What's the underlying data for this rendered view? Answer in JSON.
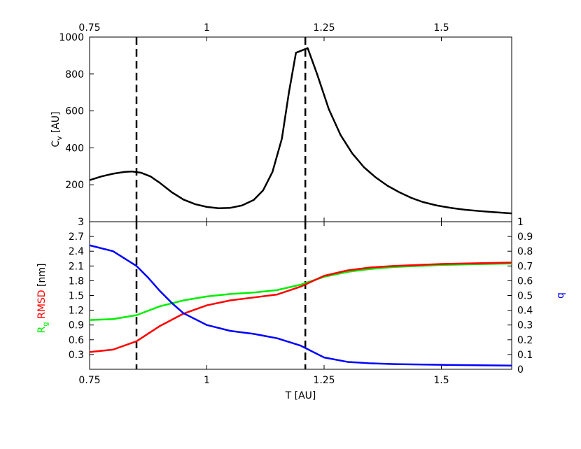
{
  "chart_data": [
    {
      "type": "line",
      "panel": "top",
      "ylabel_base": "C",
      "ylabel_sub": "v",
      "ylabel_rest": " [AU]",
      "xlim": [
        0.75,
        1.65
      ],
      "ylim": [
        0,
        1000
      ],
      "x_ticks": [
        "0.75",
        "1",
        "1.25",
        "1.5"
      ],
      "x_tick_values": [
        0.75,
        1.0,
        1.25,
        1.5
      ],
      "y_ticks": [
        "200",
        "400",
        "600",
        "800",
        "1000"
      ],
      "y_tick_values": [
        200,
        400,
        600,
        800,
        1000
      ],
      "vlines": [
        0.85,
        1.21
      ],
      "grid": false,
      "series": [
        {
          "color": "#000000",
          "x": [
            0.75,
            0.775,
            0.8,
            0.825,
            0.84,
            0.86,
            0.88,
            0.9,
            0.925,
            0.95,
            0.975,
            1.0,
            1.025,
            1.05,
            1.075,
            1.1,
            1.12,
            1.14,
            1.16,
            1.175,
            1.19,
            1.2,
            1.215,
            1.235,
            1.26,
            1.285,
            1.31,
            1.335,
            1.36,
            1.385,
            1.41,
            1.435,
            1.46,
            1.49,
            1.52,
            1.55,
            1.58,
            1.61,
            1.65
          ],
          "y": [
            225,
            245,
            260,
            270,
            272,
            265,
            245,
            210,
            160,
            120,
            95,
            80,
            73,
            75,
            88,
            118,
            170,
            270,
            450,
            700,
            915,
            925,
            940,
            800,
            610,
            470,
            370,
            295,
            240,
            195,
            160,
            130,
            107,
            88,
            75,
            65,
            58,
            52,
            45
          ]
        }
      ]
    },
    {
      "type": "line",
      "panel": "bottom",
      "xlabel": "T [AU]",
      "ylabel_parts": [
        {
          "text": "R",
          "color": "#00ee00"
        },
        {
          "text": "g",
          "color": "#00ee00",
          "sub": true
        },
        {
          "text": " RMSD",
          "color": "#ff0000"
        },
        {
          "text": " [nm]",
          "color": "#000000"
        }
      ],
      "y2label": "b",
      "y2label_color": "#0000ff",
      "xlim": [
        0.75,
        1.65
      ],
      "ylim": [
        0,
        3.0
      ],
      "y2lim": [
        0,
        1.0
      ],
      "x_ticks": [
        "0.75",
        "1",
        "1.25",
        "1.5"
      ],
      "x_tick_values": [
        0.75,
        1.0,
        1.25,
        1.5
      ],
      "y_ticks": [
        "0.3",
        "0.6",
        "0.9",
        "1.2",
        "1.5",
        "1.8",
        "2.1",
        "2.4",
        "2.7",
        "3"
      ],
      "y_tick_values": [
        0.3,
        0.6,
        0.9,
        1.2,
        1.5,
        1.8,
        2.1,
        2.4,
        2.7,
        3.0
      ],
      "y2_ticks": [
        "0",
        "0.1",
        "0.2",
        "0.3",
        "0.4",
        "0.5",
        "0.6",
        "0.7",
        "0.8",
        "0.9",
        "1"
      ],
      "y2_tick_values": [
        0,
        0.1,
        0.2,
        0.3,
        0.4,
        0.5,
        0.6,
        0.7,
        0.8,
        0.9,
        1.0
      ],
      "vlines": [
        0.85,
        1.21
      ],
      "grid": false,
      "series": [
        {
          "color": "#00ee00",
          "axis": "left",
          "x": [
            0.75,
            0.8,
            0.85,
            0.9,
            0.95,
            1.0,
            1.05,
            1.1,
            1.15,
            1.2,
            1.25,
            1.3,
            1.35,
            1.4,
            1.5,
            1.65
          ],
          "y": [
            1.0,
            1.02,
            1.1,
            1.28,
            1.4,
            1.48,
            1.53,
            1.56,
            1.61,
            1.72,
            1.88,
            1.98,
            2.04,
            2.08,
            2.12,
            2.15
          ]
        },
        {
          "color": "#ff0000",
          "axis": "left",
          "x": [
            0.75,
            0.8,
            0.85,
            0.9,
            0.95,
            1.0,
            1.05,
            1.1,
            1.15,
            1.2,
            1.25,
            1.3,
            1.35,
            1.4,
            1.5,
            1.65
          ],
          "y": [
            0.35,
            0.4,
            0.57,
            0.88,
            1.13,
            1.3,
            1.4,
            1.46,
            1.52,
            1.68,
            1.9,
            2.01,
            2.07,
            2.1,
            2.14,
            2.17
          ]
        },
        {
          "color": "#0000ff",
          "axis": "right",
          "x": [
            0.75,
            0.8,
            0.85,
            0.875,
            0.9,
            0.925,
            0.95,
            1.0,
            1.05,
            1.1,
            1.15,
            1.2,
            1.25,
            1.3,
            1.35,
            1.4,
            1.5,
            1.65
          ],
          "y": [
            0.84,
            0.8,
            0.7,
            0.62,
            0.53,
            0.45,
            0.38,
            0.3,
            0.26,
            0.24,
            0.21,
            0.16,
            0.08,
            0.05,
            0.04,
            0.035,
            0.03,
            0.025
          ]
        }
      ]
    }
  ]
}
